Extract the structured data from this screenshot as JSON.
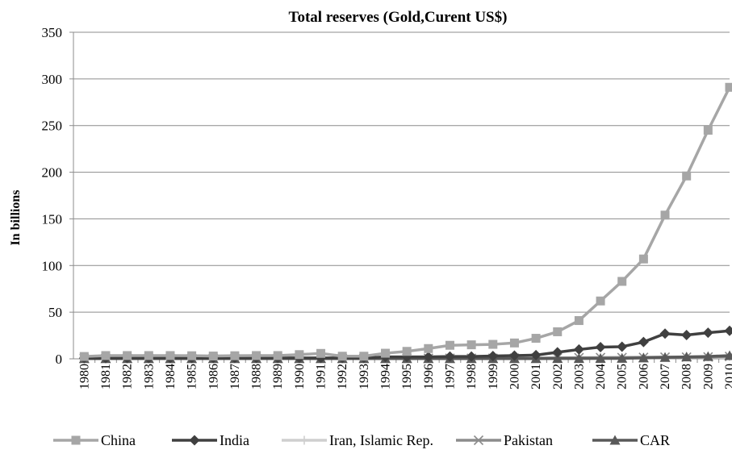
{
  "chart_data": {
    "type": "line",
    "title": "Total reserves (Gold,Curent US$)",
    "xlabel": "",
    "ylabel": "In billions",
    "ylim": [
      0,
      350
    ],
    "yticks": [
      0,
      50,
      100,
      150,
      200,
      250,
      300,
      350
    ],
    "grid": true,
    "legend_position": "bottom",
    "x": [
      "1980",
      "1981",
      "1982",
      "1983",
      "1984",
      "1985",
      "1986",
      "1987",
      "1988",
      "1989",
      "1990",
      "1991",
      "1992",
      "1993",
      "1994",
      "1995",
      "1996",
      "1997",
      "1998",
      "1999",
      "2000",
      "2001",
      "2002",
      "2003",
      "2004",
      "2005",
      "2006",
      "2007",
      "2008",
      "2009",
      "2010"
    ],
    "series": [
      {
        "name": "China",
        "color": "#a6a6a6",
        "marker": "square",
        "values": [
          2.5,
          3.5,
          3.5,
          3.5,
          3.5,
          3.3,
          3.0,
          3.3,
          3.5,
          3.5,
          4.5,
          5.8,
          2.8,
          2.8,
          6.0,
          8.0,
          11.0,
          14.5,
          15.0,
          15.5,
          17.0,
          22.0,
          29.0,
          41.0,
          62.0,
          83.0,
          107.0,
          154.0,
          196.0,
          245.0,
          291.0
        ]
      },
      {
        "name": "India",
        "color": "#404040",
        "marker": "diamond",
        "values": [
          0.8,
          0.8,
          0.9,
          0.9,
          0.9,
          0.9,
          0.9,
          1.0,
          1.0,
          1.0,
          1.0,
          1.0,
          1.0,
          1.0,
          2.0,
          2.0,
          2.0,
          2.5,
          2.5,
          3.0,
          3.5,
          4.0,
          7.0,
          10.0,
          12.5,
          13.0,
          18.0,
          27.0,
          25.5,
          28.0,
          30.0
        ]
      },
      {
        "name": "Iran, Islamic Rep.",
        "color": "#cfcfcf",
        "marker": "plus",
        "values": [
          0.5,
          0.5,
          0.5,
          0.5,
          0.5,
          0.5,
          0.5,
          0.5,
          0.5,
          0.5,
          0.5,
          0.5,
          0.5,
          0.5,
          0.6,
          0.6,
          0.6,
          0.7,
          0.7,
          0.7,
          0.8,
          0.8,
          0.9,
          1.0,
          1.1,
          1.2,
          1.5,
          1.8,
          2.0,
          2.2,
          2.5
        ]
      },
      {
        "name": "Pakistan",
        "color": "#8c8c8c",
        "marker": "x",
        "values": [
          0.5,
          0.5,
          0.5,
          0.5,
          0.5,
          0.5,
          0.5,
          0.5,
          0.5,
          0.5,
          0.5,
          0.5,
          0.5,
          0.5,
          0.6,
          0.6,
          0.6,
          0.6,
          0.6,
          0.6,
          0.7,
          0.8,
          1.0,
          1.2,
          1.3,
          1.4,
          1.6,
          1.8,
          1.8,
          2.0,
          2.5
        ]
      },
      {
        "name": "CAR",
        "color": "#595959",
        "marker": "triangle",
        "values": [
          0.2,
          0.2,
          0.2,
          0.2,
          0.2,
          0.2,
          0.2,
          0.2,
          0.2,
          0.2,
          0.2,
          0.2,
          0.2,
          0.2,
          0.2,
          0.2,
          0.2,
          0.2,
          0.2,
          0.2,
          0.2,
          0.2,
          0.3,
          0.3,
          0.4,
          0.5,
          1.0,
          1.5,
          2.0,
          2.5,
          3.5
        ]
      }
    ]
  }
}
